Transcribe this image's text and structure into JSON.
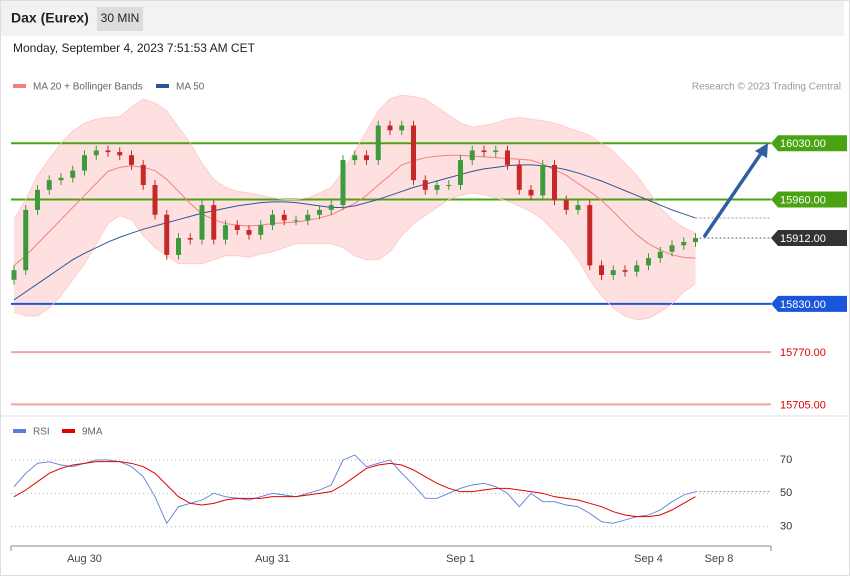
{
  "header": {
    "title": "Dax (Eurex)",
    "interval": "30 MIN",
    "timestamp": "Monday, September 4, 2023 7:51:53 AM CET",
    "credit": "Research © 2023 Trading Central"
  },
  "chart_data": [
    {
      "type": "candlestick",
      "ylim": [
        15698,
        16090
      ],
      "up_color": "#3d9a3d",
      "down_color": "#c62828",
      "open": [
        15860,
        15872,
        15947,
        15972,
        15984,
        15987,
        15996,
        16015,
        16021,
        16019,
        16015,
        16003,
        15978,
        15941,
        15891,
        15912,
        15910,
        15953,
        15910,
        15928,
        15922,
        15916,
        15928,
        15941,
        15934,
        15934,
        15941,
        15947,
        15953,
        16009,
        16015,
        16009,
        16052,
        16046,
        16052,
        15984,
        15972,
        15978,
        15978,
        16009,
        16021,
        16019,
        16021,
        16003,
        15972,
        15965,
        16003,
        15959,
        15947,
        15953,
        15878,
        15866,
        15872,
        15870,
        15878,
        15887,
        15895,
        15903,
        15907,
        null,
        null,
        null,
        null,
        null,
        null
      ],
      "high": [
        15878,
        15953,
        15978,
        15990,
        15993,
        16002,
        16021,
        16027,
        16027,
        16025,
        16021,
        16009,
        15984,
        15947,
        15918,
        15918,
        15959,
        15959,
        15934,
        15934,
        15928,
        15934,
        15947,
        15947,
        15940,
        15947,
        15953,
        15959,
        16015,
        16021,
        16021,
        16058,
        16058,
        16058,
        16058,
        15990,
        15984,
        15984,
        16015,
        16027,
        16027,
        16027,
        16027,
        16009,
        15978,
        16009,
        16009,
        15965,
        15959,
        15959,
        15884,
        15878,
        15878,
        15884,
        15893,
        15901,
        15909,
        15913,
        15918,
        null,
        null,
        null,
        null,
        null,
        null
      ],
      "low": [
        15854,
        15866,
        15941,
        15966,
        15978,
        15981,
        15990,
        16009,
        16013,
        16009,
        15997,
        15972,
        15935,
        15885,
        15885,
        15904,
        15904,
        15904,
        15904,
        15916,
        15910,
        15910,
        15922,
        15928,
        15928,
        15928,
        15935,
        15941,
        15947,
        16003,
        16003,
        16003,
        16040,
        16040,
        15978,
        15966,
        15966,
        15972,
        15972,
        16003,
        16013,
        16013,
        15997,
        15966,
        15959,
        15959,
        15953,
        15941,
        15941,
        15872,
        15860,
        15860,
        15864,
        15864,
        15872,
        15881,
        15889,
        15897,
        15901,
        null,
        null,
        null,
        null,
        null,
        null
      ],
      "close": [
        15872,
        15947,
        15972,
        15984,
        15987,
        15996,
        16015,
        16021,
        16019,
        16015,
        16003,
        15978,
        15941,
        15891,
        15912,
        15910,
        15953,
        15910,
        15928,
        15922,
        15916,
        15928,
        15941,
        15934,
        15934,
        15941,
        15947,
        15953,
        16009,
        16015,
        16009,
        16052,
        16046,
        16052,
        15984,
        15972,
        15978,
        15978,
        16009,
        16021,
        16019,
        16021,
        16003,
        15972,
        15965,
        16003,
        15959,
        15947,
        15953,
        15878,
        15866,
        15872,
        15870,
        15878,
        15887,
        15895,
        15903,
        15907,
        15912,
        null,
        null,
        null,
        null,
        null,
        null
      ],
      "series": [
        {
          "name": "MA 20 + Bollinger Bands",
          "color": "#f08080",
          "band_color": "#ffd6d6",
          "values": [
            15878,
            15890,
            15905,
            15920,
            15935,
            15950,
            15965,
            15980,
            15995,
            16000,
            16002,
            16000,
            15996,
            15985,
            15970,
            15955,
            15942,
            15935,
            15930,
            15928,
            15927,
            15928,
            15930,
            15931,
            15932,
            15934,
            15937,
            15941,
            15948,
            15955,
            15965,
            15978,
            15990,
            16003,
            16008,
            16012,
            16014,
            16015,
            16015,
            16014,
            16013,
            16012,
            16011,
            16010,
            16009,
            16004,
            15997,
            15990,
            15980,
            15970,
            15959,
            15945,
            15930,
            15916,
            15905,
            15897,
            15891,
            15888,
            15887,
            null,
            null,
            null,
            null,
            null,
            null
          ],
          "upper": [
            15935,
            15960,
            15990,
            16010,
            16030,
            16045,
            16055,
            16060,
            16062,
            16063,
            16075,
            16085,
            16080,
            16070,
            16050,
            16030,
            16005,
            15985,
            15975,
            15970,
            15968,
            15965,
            15962,
            15960,
            15960,
            15962,
            15968,
            15975,
            15995,
            16020,
            16045,
            16070,
            16085,
            16090,
            16088,
            16085,
            16075,
            16065,
            16055,
            16050,
            16052,
            16055,
            16060,
            16062,
            16060,
            16058,
            16055,
            16050,
            16045,
            16040,
            16030,
            16020,
            16005,
            15990,
            15970,
            15950,
            15935,
            15925,
            15918,
            null,
            null,
            null,
            null,
            null,
            null
          ],
          "lower": [
            15820,
            15815,
            15815,
            15825,
            15840,
            15860,
            15880,
            15905,
            15930,
            15940,
            15935,
            15915,
            15900,
            15890,
            15880,
            15880,
            15880,
            15885,
            15890,
            15890,
            15888,
            15892,
            15895,
            15900,
            15905,
            15905,
            15905,
            15905,
            15900,
            15890,
            15885,
            15885,
            15895,
            15915,
            15930,
            15940,
            15950,
            15960,
            15965,
            15968,
            15966,
            15962,
            15958,
            15952,
            15945,
            15935,
            15920,
            15905,
            15885,
            15860,
            15840,
            15825,
            15815,
            15810,
            15812,
            15820,
            15830,
            15845,
            15855,
            null,
            null,
            null,
            null,
            null,
            null
          ]
        },
        {
          "name": "MA 50",
          "color": "#2f5597",
          "values": [
            15835,
            15845,
            15855,
            15865,
            15875,
            15885,
            15893,
            15900,
            15907,
            15913,
            15918,
            15923,
            15927,
            15931,
            15935,
            15939,
            15943,
            15946,
            15949,
            15952,
            15954,
            15956,
            15957,
            15957,
            15956,
            15954,
            15952,
            15950,
            15950,
            15952,
            15956,
            15960,
            15965,
            15970,
            15975,
            15979,
            15983,
            15987,
            15991,
            15995,
            15998,
            16000,
            16002,
            16003,
            16003,
            16002,
            16000,
            15997,
            15993,
            15988,
            15983,
            15977,
            15971,
            15965,
            15959,
            15953,
            15947,
            15942,
            15937,
            null,
            null,
            null,
            null,
            null,
            null
          ]
        }
      ],
      "levels": [
        {
          "value": 16030,
          "label": "16030.00",
          "color": "#4aa312",
          "style": "solid",
          "box": true
        },
        {
          "value": 15960,
          "label": "15960.00",
          "color": "#4aa312",
          "style": "solid",
          "box": true
        },
        {
          "value": 15912,
          "label": "15912.00",
          "color": "#333333",
          "style": "dotted",
          "box": true
        },
        {
          "value": 15830,
          "label": "15830.00",
          "color": "#1a56db",
          "style": "solid",
          "box": true
        },
        {
          "value": 15770,
          "label": "15770.00",
          "color": "#f4a3a3",
          "style": "solid",
          "box": false
        },
        {
          "value": 15705,
          "label": "15705.00",
          "color": "#f4a3a3",
          "style": "solid",
          "box": false
        }
      ]
    },
    {
      "type": "line",
      "categories": [
        null,
        null,
        null,
        null,
        null,
        null,
        "Aug 30",
        null,
        null,
        null,
        null,
        null,
        null,
        null,
        null,
        null,
        null,
        null,
        null,
        null,
        null,
        null,
        "Aug 31",
        null,
        null,
        null,
        null,
        null,
        null,
        null,
        null,
        null,
        null,
        null,
        null,
        null,
        null,
        null,
        "Sep 1",
        null,
        null,
        null,
        null,
        null,
        null,
        null,
        null,
        null,
        null,
        null,
        null,
        null,
        null,
        null,
        "Sep 4",
        null,
        null,
        null,
        null,
        null,
        "Sep 8",
        null,
        null,
        null,
        null
      ],
      "ylim": [
        19,
        82
      ],
      "yticks": [
        30,
        50,
        70
      ],
      "series": [
        {
          "name": "RSI",
          "color": "#5b7fd6",
          "values": [
            54,
            62,
            68,
            69,
            67,
            66,
            68,
            70,
            70,
            69,
            66,
            60,
            48,
            32,
            42,
            44,
            46,
            50,
            48,
            47,
            46,
            48,
            50,
            49,
            48,
            50,
            52,
            55,
            70,
            73,
            66,
            68,
            70,
            62,
            55,
            47,
            47,
            50,
            53,
            55,
            56,
            54,
            50,
            42,
            50,
            45,
            45,
            43,
            42,
            38,
            33,
            32,
            34,
            36,
            37,
            40,
            45,
            49,
            51,
            null,
            null,
            null,
            null,
            null,
            null
          ]
        },
        {
          "name": "9MA",
          "color": "#e00000",
          "values": [
            48,
            52,
            57,
            62,
            65,
            67,
            68,
            69,
            69,
            69,
            68,
            66,
            62,
            55,
            48,
            44,
            43,
            44,
            46,
            47,
            47,
            47,
            48,
            48,
            48,
            49,
            50,
            51,
            55,
            60,
            65,
            67,
            68,
            67,
            64,
            60,
            56,
            53,
            51,
            51,
            52,
            53,
            53,
            52,
            51,
            50,
            48,
            47,
            46,
            44,
            42,
            39,
            37,
            36,
            36,
            37,
            40,
            44,
            48,
            null,
            null,
            null,
            null,
            null,
            null
          ]
        }
      ]
    }
  ]
}
